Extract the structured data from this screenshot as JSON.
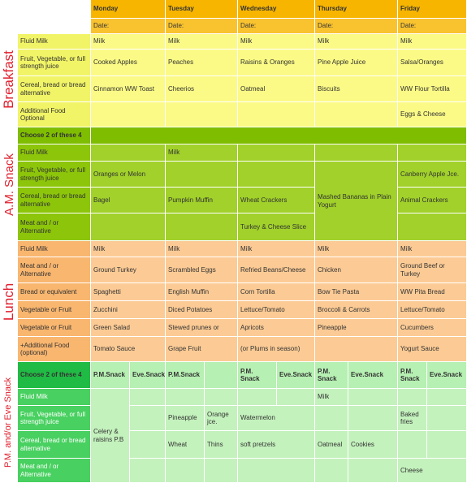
{
  "days": [
    "Monday",
    "Tuesday",
    "Wednesday",
    "Thursday",
    "Friday"
  ],
  "date_label": "Date:",
  "sections": {
    "breakfast": "Breakfast",
    "am_snack": "A.M. Snack",
    "lunch": "Lunch",
    "pm_snack": "P.M. and/or Eve Snack"
  },
  "breakfast": {
    "rows": [
      {
        "label": "Fluid Milk",
        "values": [
          "Milk",
          "Milk",
          "Milk",
          "Milk",
          "Milk"
        ]
      },
      {
        "label": "Fruit, Vegetable, or full strength juice",
        "values": [
          "Cooked Apples",
          "Peaches",
          "Raisins & Oranges",
          "Pine Apple Juice",
          "Salsa/Oranges"
        ]
      },
      {
        "label": "Cereal, bread or bread alternative",
        "values": [
          "Cinnamon WW Toast",
          "Cheerios",
          "Oatmeal",
          "Biscuits",
          "WW Flour Tortilla"
        ]
      },
      {
        "label": "Additional Food Optional",
        "values": [
          "",
          "",
          "",
          "",
          "Eggs & Cheese"
        ]
      }
    ]
  },
  "am_snack": {
    "choose": "Choose 2 of these 4",
    "rows": [
      {
        "label": "Fluid Milk"
      },
      {
        "label": "Fruit, Vegetable, or full strength juice"
      },
      {
        "label": "Cereal, bread or bread alternative"
      },
      {
        "label": "Meat and / or Alternative"
      }
    ],
    "tue_milk": "Milk",
    "mon_fruit": "Oranges or Melon",
    "fri_fruit": "Canberry Apple Jce.",
    "mon_bread": "Bagel",
    "tue_bread": "Pumpkin Muffin",
    "wed_bread": "Wheat Crackers",
    "thu_span": "Mashed Bananas in Plain Yogurt",
    "fri_bread": "Animal Crackers",
    "wed_meat": "Turkey & Cheese Slice"
  },
  "lunch": {
    "rows": [
      {
        "label": "Fluid Milk",
        "values": [
          "Milk",
          "Milk",
          "Milk",
          "Milk",
          "Milk"
        ]
      },
      {
        "label": "Meat and / or Alternative",
        "values": [
          "Ground Turkey",
          "Scrambled Eggs",
          "Refried Beans/Cheese",
          "Chicken",
          "Ground Beef or Turkey"
        ]
      },
      {
        "label": "Bread or equivalent",
        "values": [
          "Spaghetti",
          "English Muffin",
          "Corn Tortilla",
          "Bow Tie Pasta",
          "WW Pita Bread"
        ]
      },
      {
        "label": "Vegetable or Fruit",
        "values": [
          "Zucchini",
          "Diced Potatoes",
          "Lettuce/Tomato",
          "Broccoli & Carrots",
          "Lettuce/Tomato"
        ]
      },
      {
        "label": "Vegetable or Fruit",
        "values": [
          "Green Salad",
          "Stewed prunes or",
          "Apricots",
          "Pineapple",
          "Cucumbers"
        ]
      },
      {
        "label": "+Additional Food (optional)",
        "values": [
          "Tomato Sauce",
          "Grape Fruit",
          "(or Plums in season)",
          "",
          "Yogurt Sauce"
        ]
      }
    ]
  },
  "pm_snack": {
    "choose": "Choose 2 of these 4",
    "pm_label": "P.M.Snack",
    "eve_label": "Eve.Snack",
    "wed_pm_label": "P.M. Snack",
    "thu_pm_label": "P.M. Snack",
    "thu_eve_label": "Eve.Snack",
    "fri_pm_label": "P.M. Snack",
    "rows": [
      {
        "label": "Fluid Milk"
      },
      {
        "label": "Fruit, Vegetable, or full strength juice"
      },
      {
        "label": "Cereal, bread or bread alternative"
      },
      {
        "label": "Meat and / or Alternative"
      }
    ],
    "mon_span": "Celery & raisins P.B",
    "thu_milk": "Milk",
    "tue_fruit": "Pineapple",
    "tue_eve_fruit": "Orange jce.",
    "wed_fruit": "Watermelon",
    "fri_fruit": "Baked fries",
    "tue_bread": "Wheat",
    "tue_eve_bread": "Thins",
    "wed_bread": "soft pretzels",
    "thu_bread": "Oatmeal",
    "thu_eve_bread": "Cookies",
    "fri_meat": "Cheese"
  }
}
